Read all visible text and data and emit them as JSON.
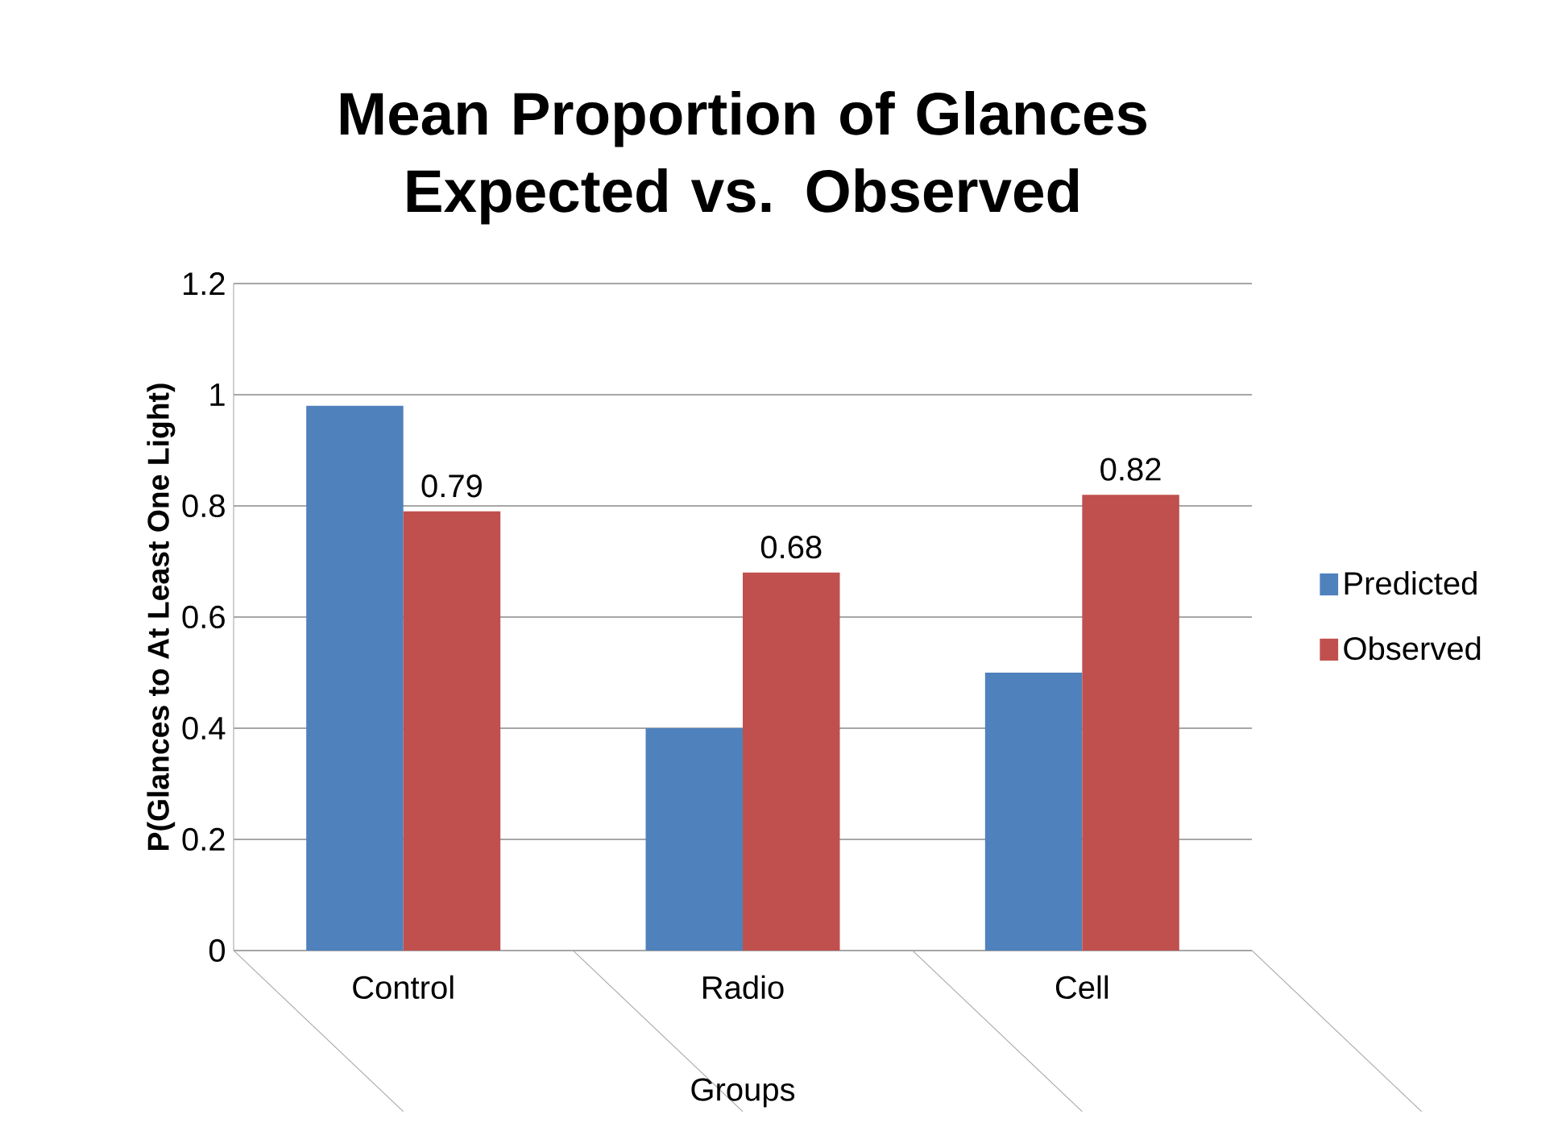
{
  "chart_data": {
    "type": "bar",
    "title": "Mean Proportion of Glances Expected vs. Observed",
    "xlabel": "Groups",
    "ylabel": "P(Glances to At Least One Light)",
    "categories": [
      "Control",
      "Radio",
      "Cell"
    ],
    "series": [
      {
        "name": "Predicted",
        "color": "#4f81bd",
        "values": [
          0.98,
          0.4,
          0.5
        ]
      },
      {
        "name": "Observed",
        "color": "#c0504d",
        "values": [
          0.79,
          0.68,
          0.82
        ],
        "value_labels": [
          "0.79",
          "0.68",
          "0.82"
        ]
      }
    ],
    "ylim": [
      0,
      1.2
    ],
    "yticks": [
      0,
      0.2,
      0.4,
      0.6,
      0.8,
      1,
      1.2
    ],
    "grid": "y",
    "legend": "right"
  }
}
